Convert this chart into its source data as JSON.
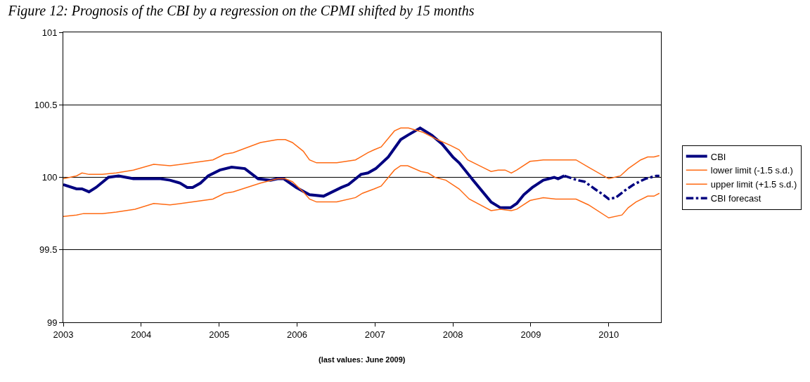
{
  "chart_data": {
    "type": "line",
    "title": "Figure 12: Prognosis of the CBI by a regression on the CPMI shifted by 15 months",
    "annotations": [
      "(last values: June 2009)"
    ],
    "xlim": [
      2003,
      2010.67
    ],
    "xticks": [
      2003,
      2004,
      2005,
      2006,
      2007,
      2008,
      2009,
      2010
    ],
    "ylim": [
      99,
      101
    ],
    "yticks": [
      99,
      99.5,
      100,
      100.5,
      101
    ],
    "grid": "y",
    "legend": "right",
    "marker": "none",
    "series": [
      {
        "name": "CBI",
        "color": "#000080",
        "line_style": "solid",
        "x": [
          2003.0,
          2003.17,
          2003.24,
          2003.33,
          2003.42,
          2003.58,
          2003.71,
          2003.9,
          2004.02,
          2004.25,
          2004.37,
          2004.5,
          2004.59,
          2004.66,
          2004.76,
          2004.86,
          2005.01,
          2005.16,
          2005.33,
          2005.5,
          2005.66,
          2005.75,
          2005.83,
          2005.99,
          2006.16,
          2006.34,
          2006.57,
          2006.66,
          2006.82,
          2006.91,
          2007.01,
          2007.17,
          2007.33,
          2007.42,
          2007.58,
          2007.73,
          2007.86,
          2008.0,
          2008.08,
          2008.26,
          2008.49,
          2008.61,
          2008.74,
          2008.82,
          2008.91,
          2009.02,
          2009.16,
          2009.3,
          2009.35,
          2009.43
        ],
        "values": [
          99.95,
          99.92,
          99.92,
          99.9,
          99.93,
          100.0,
          100.01,
          99.99,
          99.99,
          99.99,
          99.98,
          99.96,
          99.93,
          99.93,
          99.96,
          100.01,
          100.05,
          100.07,
          100.06,
          99.99,
          99.98,
          99.99,
          99.99,
          99.93,
          99.88,
          99.87,
          99.93,
          99.95,
          100.02,
          100.03,
          100.06,
          100.14,
          100.26,
          100.29,
          100.34,
          100.29,
          100.23,
          100.14,
          100.1,
          99.98,
          99.83,
          99.79,
          99.79,
          99.82,
          99.88,
          99.93,
          99.98,
          100.0,
          99.99,
          100.01
        ]
      },
      {
        "name": "lower limit (-1.5 s.d.)",
        "color": "#ff6a13",
        "line_style": "solid",
        "x": [
          2003.0,
          2003.17,
          2003.24,
          2003.33,
          2003.5,
          2003.68,
          2003.9,
          2004.16,
          2004.37,
          2004.66,
          2004.92,
          2005.07,
          2005.18,
          2005.53,
          2005.75,
          2005.85,
          2005.94,
          2006.08,
          2006.16,
          2006.25,
          2006.51,
          2006.75,
          2006.91,
          2006.99,
          2007.08,
          2007.25,
          2007.33,
          2007.43,
          2007.62,
          2007.8,
          2007.97,
          2008.08,
          2008.19,
          2008.38,
          2008.49,
          2008.58,
          2008.67,
          2008.75,
          2008.82,
          2008.99,
          2009.16,
          2009.32,
          2009.58,
          2009.74,
          2010.0,
          2010.15,
          2010.25,
          2010.41,
          2010.5,
          2010.58,
          2010.65
        ],
        "values": [
          99.99,
          100.01,
          100.03,
          100.02,
          100.02,
          100.03,
          100.05,
          100.09,
          100.08,
          100.1,
          100.12,
          100.16,
          100.17,
          100.24,
          100.26,
          100.26,
          100.24,
          100.18,
          100.12,
          100.1,
          100.1,
          100.12,
          100.17,
          100.19,
          100.21,
          100.32,
          100.34,
          100.34,
          100.31,
          100.26,
          100.22,
          100.19,
          100.12,
          100.07,
          100.04,
          100.05,
          100.05,
          100.03,
          100.05,
          100.11,
          100.12,
          100.12,
          100.12,
          100.07,
          99.99,
          100.01,
          100.06,
          100.12,
          100.14,
          100.14,
          100.15
        ]
      },
      {
        "name": "upper limit (+1.5 s.d.)",
        "color": "#ff6a13",
        "line_style": "solid",
        "x": [
          2003.0,
          2003.17,
          2003.26,
          2003.35,
          2003.5,
          2003.68,
          2003.92,
          2004.16,
          2004.37,
          2004.66,
          2004.92,
          2005.07,
          2005.18,
          2005.53,
          2005.75,
          2005.85,
          2005.94,
          2006.08,
          2006.16,
          2006.25,
          2006.51,
          2006.75,
          2006.84,
          2006.99,
          2007.08,
          2007.25,
          2007.33,
          2007.42,
          2007.59,
          2007.68,
          2007.77,
          2007.91,
          2008.08,
          2008.21,
          2008.49,
          2008.61,
          2008.75,
          2008.82,
          2008.99,
          2009.16,
          2009.32,
          2009.58,
          2009.74,
          2010.0,
          2010.17,
          2010.25,
          2010.35,
          2010.5,
          2010.58,
          2010.65
        ],
        "values": [
          99.73,
          99.74,
          99.75,
          99.75,
          99.75,
          99.76,
          99.78,
          99.82,
          99.81,
          99.83,
          99.85,
          99.89,
          99.9,
          99.96,
          99.99,
          99.99,
          99.97,
          99.9,
          99.85,
          99.83,
          99.83,
          99.86,
          99.89,
          99.92,
          99.94,
          100.05,
          100.08,
          100.08,
          100.04,
          100.03,
          100.0,
          99.98,
          99.92,
          99.85,
          99.77,
          99.78,
          99.77,
          99.78,
          99.84,
          99.86,
          99.85,
          99.85,
          99.81,
          99.72,
          99.74,
          99.79,
          99.83,
          99.87,
          99.87,
          99.89
        ]
      },
      {
        "name": "CBI forecast",
        "color": "#000080",
        "line_style": "dashed",
        "x": [
          2009.43,
          2009.6,
          2009.69,
          2009.82,
          2009.93,
          2010.0,
          2010.09,
          2010.21,
          2010.32,
          2010.47,
          2010.61,
          2010.65
        ],
        "values": [
          100.01,
          99.98,
          99.97,
          99.92,
          99.88,
          99.85,
          99.86,
          99.91,
          99.95,
          99.99,
          100.01,
          100.01
        ]
      }
    ]
  }
}
